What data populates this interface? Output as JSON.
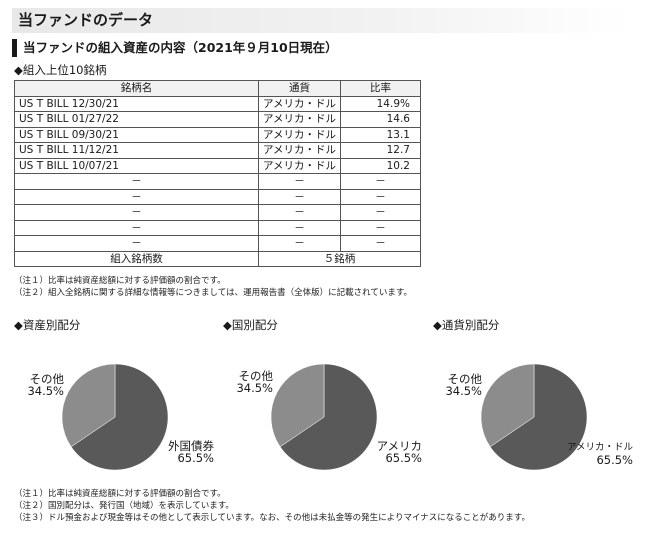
{
  "page_title": "当ファンドのデータ",
  "section_heading": "当ファンドの組入資産の内容（2021年９月10日現在）",
  "top10_heading": "◆組入上位10銘柄",
  "table": {
    "headers": [
      "銘柄名",
      "通貨",
      "比率"
    ],
    "rows": [
      [
        "US T BILL 12/30/21",
        "アメリカ・ドル",
        "14.9%"
      ],
      [
        "US T BILL 01/27/22",
        "アメリカ・ドル",
        "14.6"
      ],
      [
        "US T BILL 09/30/21",
        "アメリカ・ドル",
        "13.1"
      ],
      [
        "US T BILL 11/12/21",
        "アメリカ・ドル",
        "12.7"
      ],
      [
        "US T BILL 10/07/21",
        "アメリカ・ドル",
        "10.2"
      ],
      [
        "－",
        "－",
        "－"
      ],
      [
        "－",
        "－",
        "－"
      ],
      [
        "－",
        "－",
        "－"
      ],
      [
        "－",
        "－",
        "－"
      ],
      [
        "－",
        "－",
        "－"
      ]
    ],
    "count_label": "組入銘柄数",
    "count_value": "５銘柄"
  },
  "table_notes": [
    "（注１）比率は純資産総額に対する評価額の割合です。",
    "（注２）組入全銘柄に関する詳細な情報等につきましては、運用報告書（全体版）に記載されています。"
  ],
  "bottom_notes": [
    "（注１）比率は純資産総額に対する評価額の割合です。",
    "（注２）国別配分は、発行国（地域）を表示しています。",
    "（注３）ドル預金および現金等はその他として表示しています。なお、その他は未払金等の発生によりマイナスになることがあります。"
  ],
  "colors": {
    "major": "#595959",
    "other": "#8c8c8c"
  },
  "chart_data": [
    {
      "type": "pie",
      "title": "◆資産別配分",
      "slices": [
        {
          "label": "外国債券",
          "value": 65.5,
          "value_label": "65.5%"
        },
        {
          "label": "その他",
          "value": 34.5,
          "value_label": "34.5%"
        }
      ]
    },
    {
      "type": "pie",
      "title": "◆国別配分",
      "slices": [
        {
          "label": "アメリカ",
          "value": 65.5,
          "value_label": "65.5%"
        },
        {
          "label": "その他",
          "value": 34.5,
          "value_label": "34.5%"
        }
      ]
    },
    {
      "type": "pie",
      "title": "◆通貨別配分",
      "slices": [
        {
          "label": "アメリカ・ドル",
          "value": 65.5,
          "value_label": "65.5%"
        },
        {
          "label": "その他",
          "value": 34.5,
          "value_label": "34.5%"
        }
      ]
    }
  ]
}
